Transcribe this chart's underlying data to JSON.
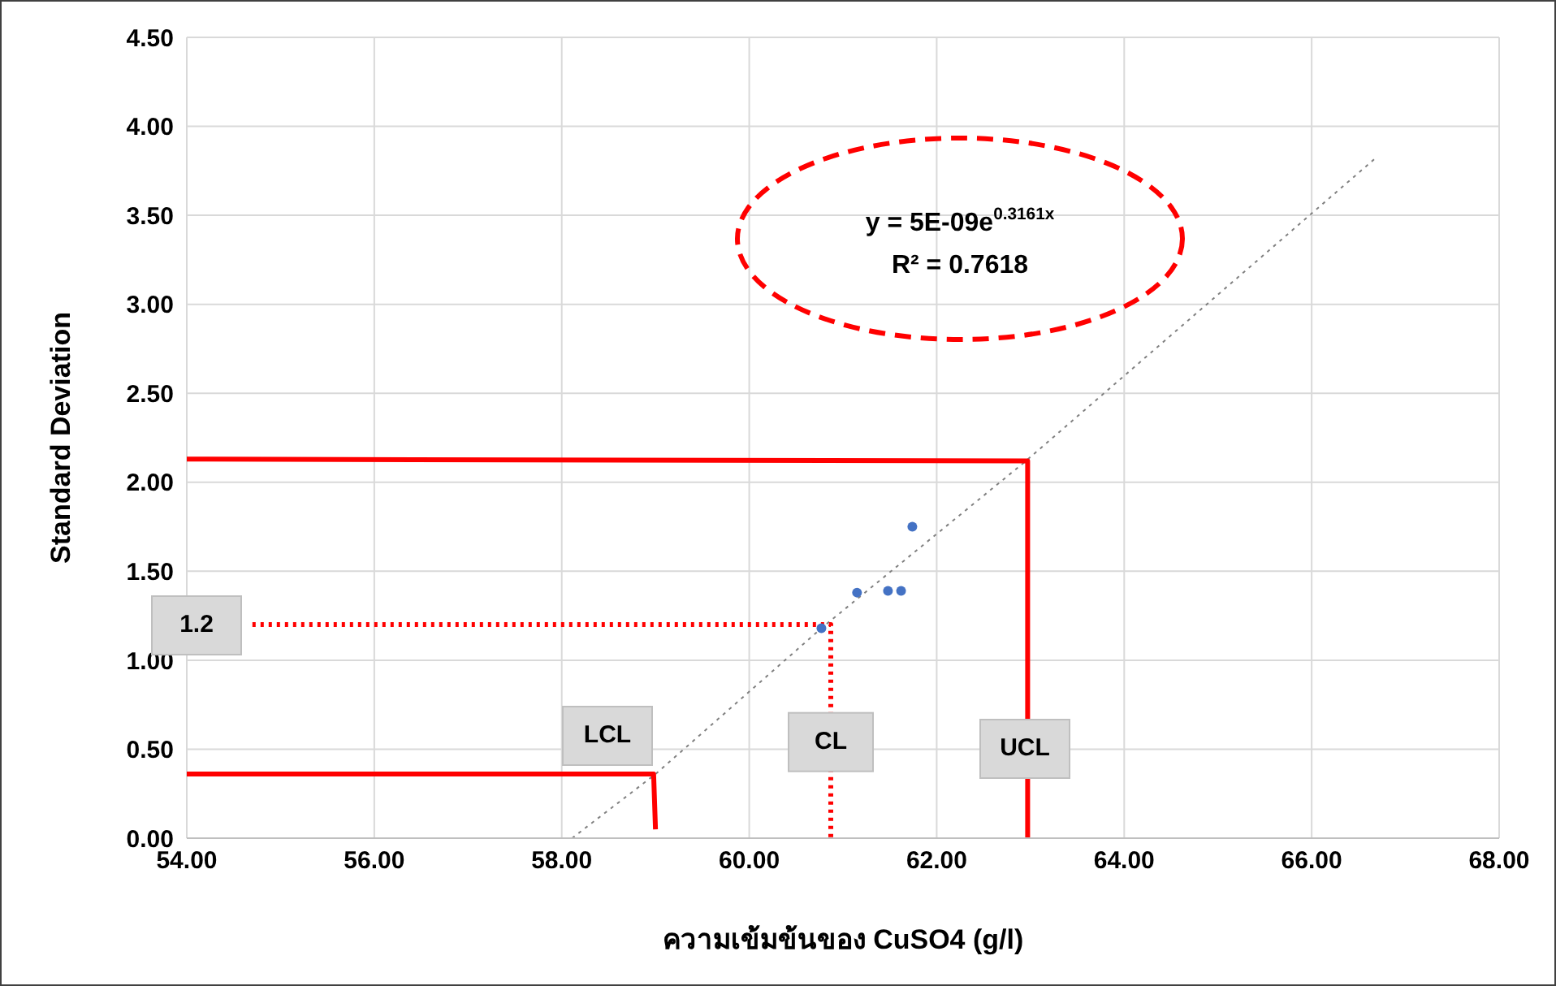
{
  "chart_data": {
    "type": "scatter",
    "xlabel": "ความเข้มข้นของ CuSO4 (g/l)",
    "ylabel": "Standard Deviation",
    "xlim": [
      54,
      68
    ],
    "xticks": [
      {
        "value": 54,
        "label": "54.00"
      },
      {
        "value": 56,
        "label": "56.00"
      },
      {
        "value": 58,
        "label": "58.00"
      },
      {
        "value": 60,
        "label": "60.00"
      },
      {
        "value": 62,
        "label": "62.00"
      },
      {
        "value": 64,
        "label": "64.00"
      },
      {
        "value": 66,
        "label": "66.00"
      },
      {
        "value": 68,
        "label": "68.00"
      }
    ],
    "ylim": [
      0,
      4.5
    ],
    "yticks": [
      {
        "value": 0,
        "label": "0.00"
      },
      {
        "value": 0.5,
        "label": "0.50"
      },
      {
        "value": 1,
        "label": "1.00"
      },
      {
        "value": 1.5,
        "label": "1.50"
      },
      {
        "value": 2,
        "label": "2.00"
      },
      {
        "value": 2.5,
        "label": "2.50"
      },
      {
        "value": 3,
        "label": "3.00"
      },
      {
        "value": 3.5,
        "label": "3.50"
      },
      {
        "value": 4,
        "label": "4.00"
      },
      {
        "value": 4.5,
        "label": "4.50"
      }
    ],
    "grid": true,
    "series": [
      {
        "type": "line",
        "color": "#808080",
        "line_style": "dotted",
        "marker": "none",
        "x": [
          58.11,
          59.0,
          60.77,
          62.93,
          66.7
        ],
        "values": [
          0,
          0.36,
          1.18,
          2.11,
          3.83
        ]
      },
      {
        "type": "line",
        "color": "#ff0000",
        "line_style": "solid",
        "marker": "none",
        "x": [
          54,
          62.97,
          62.97
        ],
        "values": [
          2.13,
          2.12,
          0
        ]
      },
      {
        "type": "line",
        "color": "#ff0000",
        "line_style": "solid",
        "marker": "none",
        "x": [
          54,
          58.98,
          59.0
        ],
        "values": [
          0.36,
          0.36,
          0.05
        ]
      },
      {
        "type": "line",
        "color": "#ff0000",
        "line_style": "dotted",
        "marker": "none",
        "x": [
          54.7,
          60.87,
          60.87
        ],
        "values": [
          1.2,
          1.2,
          0
        ]
      },
      {
        "color": "#4472c4",
        "marker": "circle",
        "x": [
          60.77,
          61.15,
          61.48,
          61.62,
          61.74
        ],
        "values": [
          1.18,
          1.38,
          1.39,
          1.39,
          1.75
        ]
      }
    ],
    "annotations": [
      "y = 5E-09e$^{0.3161x}$",
      "R² = 0.7618",
      "1.2",
      "LCL",
      {
        "text": "CL",
        "x": 60.87,
        "y": 0.54
      },
      "UCL"
    ]
  }
}
